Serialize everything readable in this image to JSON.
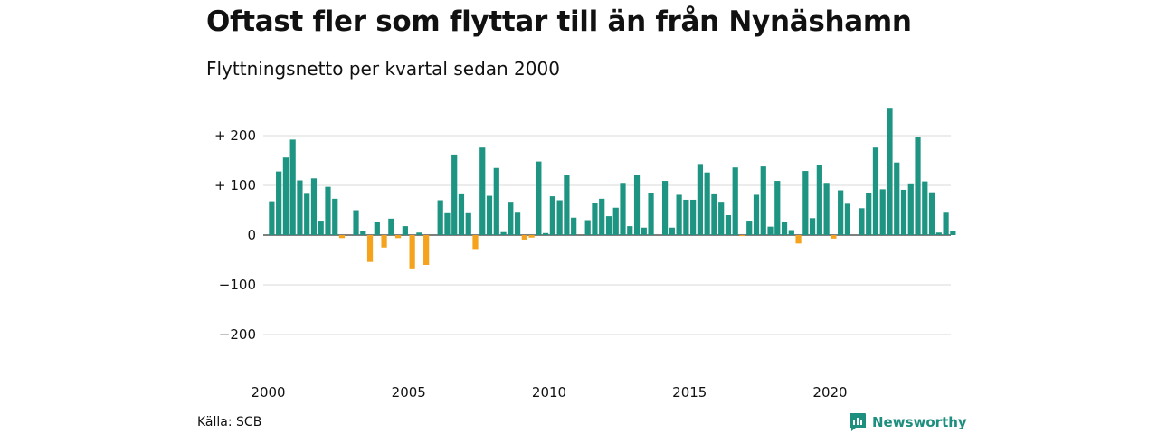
{
  "header": {
    "title": "Oftast fler som flyttar till än från Nynäshamn",
    "subtitle": "Flyttningsnetto per kvartal sedan 2000"
  },
  "footer": {
    "source": "Källa: SCB",
    "brand": "Newsworthy",
    "brand_icon": "newsworthy-logo-icon"
  },
  "colors": {
    "positive": "#1e9583",
    "negative": "#f5a21c",
    "grid": "#d9d9d9",
    "brand": "#1e8e7e"
  },
  "chart_data": {
    "type": "bar",
    "title": "Oftast fler som flyttar till än från Nynäshamn",
    "subtitle": "Flyttningsnetto per kvartal sedan 2000",
    "xlabel": "",
    "ylabel": "",
    "ylim": [
      -250,
      260
    ],
    "y_ticks": [
      {
        "value": 200,
        "label": "+ 200"
      },
      {
        "value": 100,
        "label": "+ 100"
      },
      {
        "value": 0,
        "label": "0"
      },
      {
        "value": -100,
        "label": "−100"
      },
      {
        "value": -200,
        "label": "−200"
      }
    ],
    "x_ticks": [
      {
        "value": 2000,
        "label": "2000"
      },
      {
        "value": 2005,
        "label": "2005"
      },
      {
        "value": 2010,
        "label": "2010"
      },
      {
        "value": 2015,
        "label": "2015"
      },
      {
        "value": 2020,
        "label": "2020"
      }
    ],
    "grid": true,
    "legend": "none",
    "start": "2000 Q1",
    "frequency": "quarterly",
    "values": [
      68,
      128,
      156,
      192,
      110,
      83,
      114,
      29,
      97,
      73,
      -6,
      0,
      50,
      8,
      -54,
      26,
      -25,
      33,
      -6,
      18,
      -67,
      5,
      -60,
      0,
      70,
      44,
      162,
      82,
      44,
      -28,
      176,
      79,
      135,
      6,
      67,
      45,
      -9,
      -5,
      148,
      4,
      78,
      70,
      120,
      35,
      0,
      30,
      65,
      73,
      38,
      55,
      105,
      18,
      120,
      15,
      85,
      0,
      109,
      15,
      81,
      71,
      71,
      143,
      126,
      82,
      67,
      40,
      136,
      -2,
      29,
      81,
      138,
      17,
      109,
      27,
      10,
      -17,
      129,
      34,
      140,
      105,
      -7,
      90,
      63,
      0,
      54,
      84,
      176,
      92,
      256,
      146,
      91,
      104,
      198,
      108,
      86,
      5,
      45,
      8
    ]
  }
}
